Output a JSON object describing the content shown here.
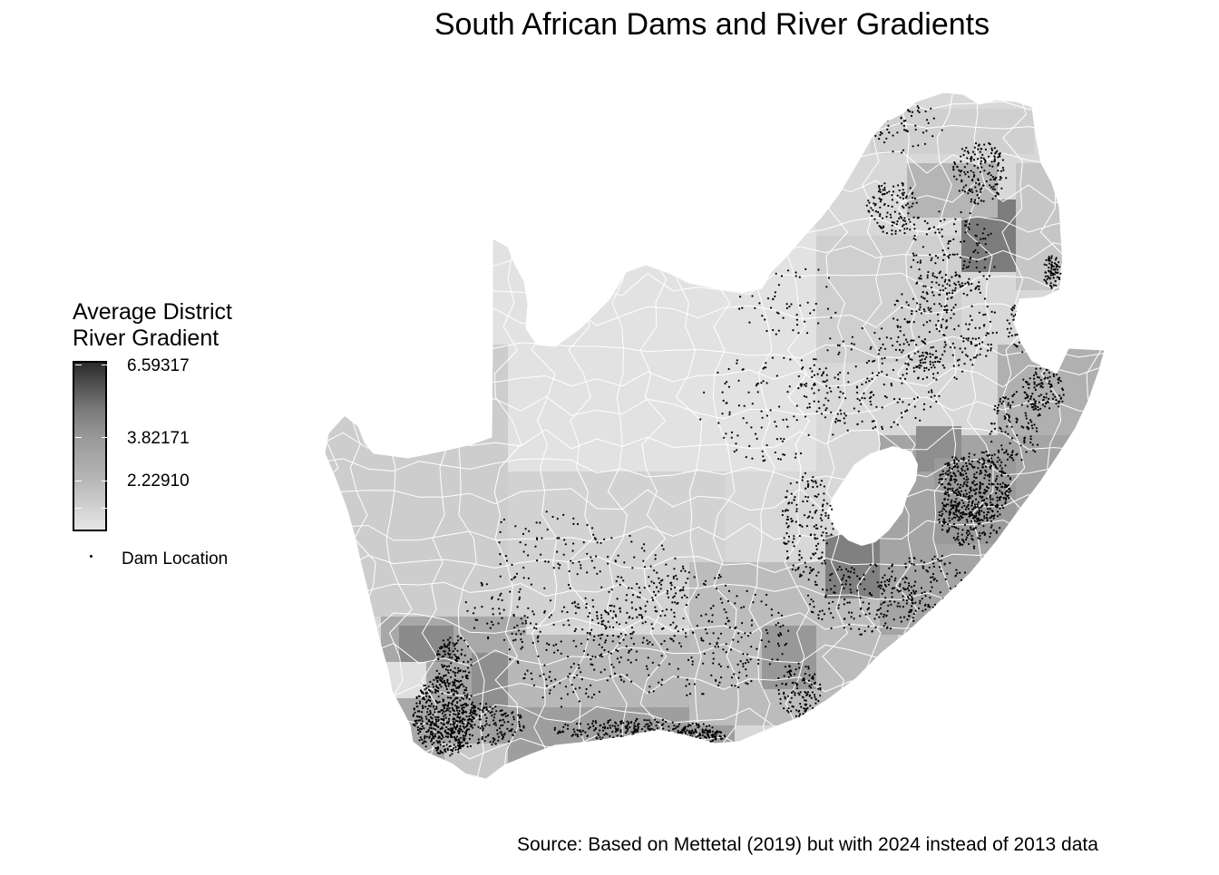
{
  "title": "South African Dams and River Gradients",
  "legend": {
    "title_line1": "Average District",
    "title_line2": "River Gradient",
    "max_label": "6.59317",
    "mid_label": "3.82171",
    "low_label": "2.22910",
    "dam_label": "Dam Location",
    "colors": {
      "low": "#e6e6e6",
      "high": "#2b2b2b",
      "dam": "#000000",
      "border": "#ffffff",
      "lesotho": "#ffffff"
    }
  },
  "source": "Source: Based on Mettetal (2019) but with 2024 instead of 2013 data"
}
